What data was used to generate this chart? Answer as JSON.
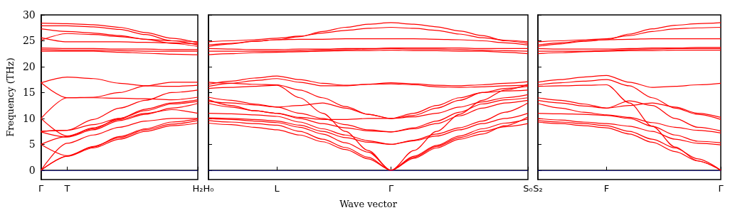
{
  "chart_data": [
    {
      "type": "line",
      "ylabel": "Frequency (THz)",
      "categories": [
        "Γ",
        "T",
        null,
        null,
        null,
        null,
        "H₂"
      ],
      "ylim": [
        -1.8,
        30
      ],
      "yticks": [
        0,
        5,
        10,
        15,
        20,
        25,
        30
      ],
      "marker": "none",
      "line_style": "solid",
      "ref_lines": [
        {
          "axis": "y",
          "value": 0,
          "label": null,
          "color": "#0000ff",
          "line_style": "dotted"
        }
      ],
      "series": [
        {
          "color": "#ff0000",
          "values": [
            0,
            2.7,
            4.3,
            6,
            7.5,
            8.6,
            9.1
          ]
        },
        {
          "color": "#ff0000",
          "values": [
            0,
            2.7,
            4.6,
            6.3,
            7.8,
            8.9,
            9.6
          ]
        },
        {
          "color": "#ff0000",
          "values": [
            0,
            5.2,
            6.8,
            8.3,
            9.5,
            10,
            10
          ]
        },
        {
          "color": "#ff0000",
          "values": [
            5,
            2.8,
            4.5,
            6.5,
            8,
            9.3,
            9.9
          ]
        },
        {
          "color": "#ff0000",
          "values": [
            5,
            6.5,
            8.2,
            9.8,
            11,
            11.7,
            11
          ]
        },
        {
          "color": "#ff0000",
          "values": [
            7.4,
            6.4,
            7.8,
            9.6,
            10.8,
            12,
            12.9
          ]
        },
        {
          "color": "#ff0000",
          "values": [
            7.5,
            7.7,
            8.8,
            10,
            11.5,
            12.8,
            13.3
          ]
        },
        {
          "color": "#ff0000",
          "values": [
            10,
            6.6,
            8,
            10,
            11.8,
            13,
            13.6
          ]
        },
        {
          "color": "#ff0000",
          "values": [
            7.5,
            7.7,
            9.8,
            12,
            13.5,
            15,
            15.5
          ]
        },
        {
          "color": "#ff0000",
          "values": [
            10,
            14,
            14,
            13.9,
            13.8,
            13.6,
            14.1
          ]
        },
        {
          "color": "#ff0000",
          "values": [
            16.9,
            14,
            14.1,
            15,
            16.3,
            17,
            17
          ]
        },
        {
          "color": "#ff0000",
          "values": [
            16.9,
            18,
            17.7,
            16.8,
            16.3,
            16.2,
            16.4
          ]
        },
        {
          "color": "#ff0000",
          "values": [
            23,
            23,
            23,
            22.8,
            22.6,
            22.4,
            22.3
          ]
        },
        {
          "color": "#ff0000",
          "values": [
            23.3,
            23.2,
            23.2,
            23.1,
            23,
            23,
            23
          ]
        },
        {
          "color": "#ff0000",
          "values": [
            23.6,
            23.5,
            23.5,
            23.4,
            23.4,
            23.3,
            23.3
          ]
        },
        {
          "color": "#ff0000",
          "values": [
            25.6,
            24.8,
            24.8,
            24.8,
            24.7,
            24.6,
            24.4
          ]
        },
        {
          "color": "#ff0000",
          "values": [
            25.1,
            26.4,
            26.2,
            25.8,
            25.3,
            25,
            24.8
          ]
        },
        {
          "color": "#ff0000",
          "values": [
            27.3,
            26.8,
            26.5,
            26,
            25.3,
            24.5,
            23.9
          ]
        },
        {
          "color": "#ff0000",
          "values": [
            27.9,
            27.9,
            27.7,
            27.2,
            26.2,
            25,
            24.2
          ]
        },
        {
          "color": "#ff0000",
          "values": [
            28.4,
            28.3,
            28.1,
            27.6,
            26.6,
            25.5,
            24.6
          ]
        }
      ]
    },
    {
      "type": "line",
      "xlabel": "Wave vector",
      "categories": [
        "H₀",
        null,
        null,
        "L",
        null,
        null,
        null,
        null,
        "Γ",
        null,
        null,
        null,
        null,
        null,
        "S₀"
      ],
      "ylim": [
        -1.8,
        30
      ],
      "yticks": [
        0,
        5,
        10,
        15,
        20,
        25,
        30
      ],
      "tick_labels": "x",
      "marker": "none",
      "line_style": "solid",
      "ref_lines": [
        {
          "axis": "y",
          "value": 0,
          "label": null,
          "color": "#0000ff",
          "line_style": "dotted"
        }
      ],
      "series": [
        {
          "color": "#ff0000",
          "values": [
            9.1,
            8.8,
            8.3,
            7.8,
            6.8,
            5.5,
            4,
            2.2,
            0,
            2.5,
            4.6,
            6.3,
            7.5,
            8.4,
            9
          ]
        },
        {
          "color": "#ff0000",
          "values": [
            9.6,
            9.3,
            9,
            8.7,
            7.5,
            6,
            4.4,
            2.5,
            0,
            2.7,
            4.8,
            6.6,
            8,
            9.1,
            9.9
          ]
        },
        {
          "color": "#ff0000",
          "values": [
            10,
            9.8,
            9.5,
            9.2,
            8.3,
            7,
            5.3,
            3.5,
            0,
            2.3,
            4.3,
            6,
            7,
            8.6,
            10.3
          ]
        },
        {
          "color": "#ff0000",
          "values": [
            10.1,
            10,
            9.8,
            9.5,
            8.7,
            7.5,
            6.3,
            5.4,
            5,
            5.7,
            6.6,
            7.8,
            9,
            10,
            11
          ]
        },
        {
          "color": "#ff0000",
          "values": [
            11,
            10.9,
            10.7,
            10.4,
            9.3,
            8,
            6.8,
            5.7,
            5,
            5.8,
            7,
            8.2,
            9.5,
            11.2,
            13
          ]
        },
        {
          "color": "#ff0000",
          "values": [
            12.9,
            12.2,
            11.5,
            11,
            10,
            9,
            8.2,
            7.6,
            7.4,
            8,
            9,
            10.5,
            12,
            13,
            13.5
          ]
        },
        {
          "color": "#ff0000",
          "values": [
            13.3,
            13,
            12.6,
            12.2,
            11,
            10,
            8.8,
            7.8,
            7.4,
            8.2,
            9.5,
            11.2,
            12.8,
            13.6,
            14
          ]
        },
        {
          "color": "#ff0000",
          "values": [
            13.6,
            12.5,
            11.5,
            11,
            10.2,
            9.8,
            9.8,
            10,
            10,
            10.3,
            11,
            12.2,
            13.2,
            14,
            14.6
          ]
        },
        {
          "color": "#ff0000",
          "values": [
            14.1,
            13.5,
            12.8,
            12.2,
            12.5,
            13,
            12,
            10.8,
            10,
            10.6,
            12,
            13.5,
            15,
            15.8,
            16.2
          ]
        },
        {
          "color": "#ff0000",
          "values": [
            15.8,
            16,
            16.2,
            16.4,
            14,
            11,
            7.5,
            3.8,
            0,
            3.8,
            7.5,
            10.8,
            13.5,
            15.5,
            16.6
          ]
        },
        {
          "color": "#ff0000",
          "values": [
            16.2,
            16.8,
            17.3,
            17.7,
            17,
            16.3,
            16.3,
            16.6,
            16.7,
            16.5,
            16.1,
            16,
            16.1,
            16.3,
            16.4
          ]
        },
        {
          "color": "#ff0000",
          "values": [
            16.6,
            17.2,
            17.8,
            18.2,
            17.5,
            16.8,
            16.4,
            16.6,
            16.9,
            16.7,
            16.4,
            16.3,
            16.5,
            16.8,
            17.1
          ]
        },
        {
          "color": "#ff0000",
          "values": [
            17,
            16.8,
            16.6,
            16.5,
            15.5,
            14,
            12.3,
            10.8,
            10,
            11,
            12.5,
            14,
            15,
            15.3,
            15.5
          ]
        },
        {
          "color": "#ff0000",
          "values": [
            22.3,
            22.5,
            22.7,
            22.8,
            22.9,
            23,
            23.1,
            23.1,
            23.2,
            23.1,
            23.1,
            23,
            23,
            22.8,
            22.5
          ]
        },
        {
          "color": "#ff0000",
          "values": [
            23,
            23,
            23,
            23,
            23.1,
            23.2,
            23.3,
            23.4,
            23.5,
            23.4,
            23.4,
            23.3,
            23.2,
            23.1,
            23
          ]
        },
        {
          "color": "#ff0000",
          "values": [
            23.5,
            23.4,
            23.3,
            23.3,
            23.4,
            23.4,
            23.5,
            23.5,
            23.6,
            23.6,
            23.6,
            23.6,
            23.5,
            23.5,
            23.5
          ]
        },
        {
          "color": "#ff0000",
          "values": [
            24.2,
            24.5,
            24.9,
            25.2,
            25.3,
            25.3,
            25.4,
            25.4,
            25.4,
            25.4,
            25.3,
            25.2,
            25,
            24.6,
            24.2
          ]
        },
        {
          "color": "#ff0000",
          "values": [
            24.8,
            25,
            25.2,
            25.5,
            25.9,
            26.5,
            27,
            27.4,
            27.6,
            27.4,
            27,
            26.3,
            25.6,
            25.1,
            24.8
          ]
        },
        {
          "color": "#ff0000",
          "values": [
            23.9,
            24.4,
            24.9,
            25.2,
            25.8,
            26.8,
            27.6,
            28.2,
            28.5,
            28.2,
            27.7,
            26.9,
            26,
            25,
            24.5
          ]
        }
      ]
    },
    {
      "type": "line",
      "categories": [
        "S₂",
        null,
        null,
        "F",
        null,
        null,
        null,
        null,
        "Γ"
      ],
      "ylim": [
        -1.8,
        30
      ],
      "yticks": [
        0,
        5,
        10,
        15,
        20,
        25,
        30
      ],
      "tick_labels": "x",
      "marker": "none",
      "line_style": "solid",
      "ref_lines": [
        {
          "axis": "y",
          "value": 0,
          "label": null,
          "color": "#0000ff",
          "line_style": "dotted"
        }
      ],
      "series": [
        {
          "color": "#ff0000",
          "values": [
            9.3,
            9,
            8.6,
            8.2,
            7,
            5.4,
            3.6,
            1.8,
            0
          ]
        },
        {
          "color": "#ff0000",
          "values": [
            9.6,
            9.3,
            9,
            8.6,
            7.5,
            6,
            4.3,
            2.2,
            0
          ]
        },
        {
          "color": "#ff0000",
          "values": [
            10,
            9.7,
            9.3,
            9,
            8.5,
            7.5,
            6,
            5.2,
            4.9
          ]
        },
        {
          "color": "#ff0000",
          "values": [
            11,
            10.9,
            10.8,
            10.6,
            10,
            8.5,
            6.8,
            5.6,
            5.3
          ]
        },
        {
          "color": "#ff0000",
          "values": [
            12.9,
            12,
            11.2,
            10.7,
            10.2,
            9.2,
            8.3,
            7.7,
            7.2
          ]
        },
        {
          "color": "#ff0000",
          "values": [
            13.5,
            13,
            12.4,
            12,
            13.4,
            12.5,
            10,
            8.3,
            7.6
          ]
        },
        {
          "color": "#ff0000",
          "values": [
            14,
            13.5,
            12.8,
            12,
            12.5,
            13,
            12.2,
            11,
            10.2
          ]
        },
        {
          "color": "#ff0000",
          "values": [
            16.2,
            16.3,
            16.4,
            16.5,
            13,
            8.5,
            4.5,
            1.8,
            0
          ]
        },
        {
          "color": "#ff0000",
          "values": [
            16.5,
            16.9,
            17.2,
            17.5,
            16.3,
            14,
            12,
            10.8,
            9.8
          ]
        },
        {
          "color": "#ff0000",
          "values": [
            17,
            17.5,
            18,
            18.3,
            17,
            16,
            16.2,
            16.5,
            16.8
          ]
        },
        {
          "color": "#ff0000",
          "values": [
            22.5,
            22.7,
            22.9,
            23,
            23.1,
            23.1,
            23.2,
            23.2,
            23.2
          ]
        },
        {
          "color": "#ff0000",
          "values": [
            23,
            23,
            23,
            23.1,
            23.3,
            23.4,
            23.5,
            23.5,
            23.5
          ]
        },
        {
          "color": "#ff0000",
          "values": [
            23.5,
            23.4,
            23.4,
            23.4,
            23.5,
            23.6,
            23.6,
            23.7,
            23.7
          ]
        },
        {
          "color": "#ff0000",
          "values": [
            24.2,
            24.6,
            25,
            25.2,
            25.3,
            25.4,
            25.4,
            25.4,
            25.4
          ]
        },
        {
          "color": "#ff0000",
          "values": [
            24.8,
            25,
            25.2,
            25.4,
            26,
            26.8,
            27.3,
            27.5,
            27.6
          ]
        },
        {
          "color": "#ff0000",
          "values": [
            23.9,
            24.4,
            24.9,
            25.2,
            26.3,
            27.3,
            28,
            28.3,
            28.5
          ]
        }
      ]
    }
  ]
}
